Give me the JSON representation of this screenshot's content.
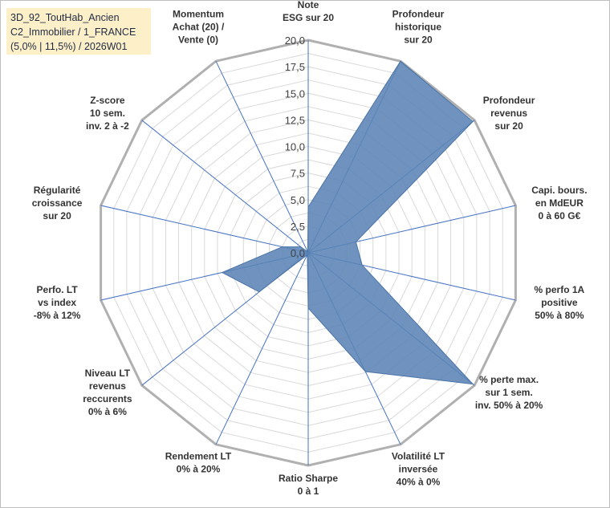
{
  "title_lines": [
    "3D_92_ToutHab_Ancien",
    "C2_Immobilier / 1_FRANCE",
    "(5,0% | 11,5%) / 2026W01"
  ],
  "chart_data": {
    "type": "radar",
    "rmax": 20,
    "ticks": [
      "0,0",
      "2,5",
      "5,0",
      "7,5",
      "10,0",
      "12,5",
      "15,0",
      "17,5",
      "20,0"
    ],
    "tick_values": [
      0,
      2.5,
      5,
      7.5,
      10,
      12.5,
      15,
      17.5,
      20
    ],
    "gridlines": [
      0,
      1.25,
      2.5,
      3.75,
      5,
      6.25,
      7.5,
      8.75,
      10,
      11.25,
      12.5,
      13.75,
      15,
      16.25,
      17.5,
      18.75,
      20
    ],
    "axes": [
      {
        "label": [
          "Note",
          "ESG sur 20"
        ],
        "value": 4.3
      },
      {
        "label": [
          "Profondeur",
          "historique",
          "sur 20"
        ],
        "value": 20
      },
      {
        "label": [
          "Profondeur",
          "revenus",
          "sur 20"
        ],
        "value": 19.8
      },
      {
        "label": [
          "Capi. bours.",
          "en MdEUR",
          "0 à 60 G€"
        ],
        "value": 4.6
      },
      {
        "label": [
          "% perfo 1A",
          "positive",
          "50% à 80%"
        ],
        "value": 5.2
      },
      {
        "label": [
          "% perte max.",
          "sur 1 sem.",
          "inv. 50% à 20%"
        ],
        "value": 19.8
      },
      {
        "label": [
          "Volatilité LT",
          "inversée",
          "40% à 0%"
        ],
        "value": 12.4
      },
      {
        "label": [
          "Ratio Sharpe",
          "0 à 1"
        ],
        "value": 5.2
      },
      {
        "label": [
          "Rendement LT",
          "0% à 20%"
        ],
        "value": 0.2
      },
      {
        "label": [
          "Niveau LT",
          "revenus",
          "reccurents",
          "0% à 6%"
        ],
        "value": 5.9
      },
      {
        "label": [
          "Perfo. LT",
          "vs index",
          "-8% à 12%"
        ],
        "value": 8.3
      },
      {
        "label": [
          "Régularité",
          "croissance",
          "sur 20"
        ],
        "value": 2.5
      },
      {
        "label": [
          "Z-score",
          "10 sem.",
          "inv. 2 à -2"
        ],
        "value": 0.9
      },
      {
        "label": [
          "Momentum",
          "Achat (20) /",
          "Vente (0)"
        ],
        "value": 0.1
      }
    ],
    "series_color": "#5b84b5",
    "series_stroke": "#4a73a8",
    "spoke_color": "#4472c4",
    "grid_color": "#d9d9d9",
    "outer_grid_color": "#b0b0b0"
  }
}
